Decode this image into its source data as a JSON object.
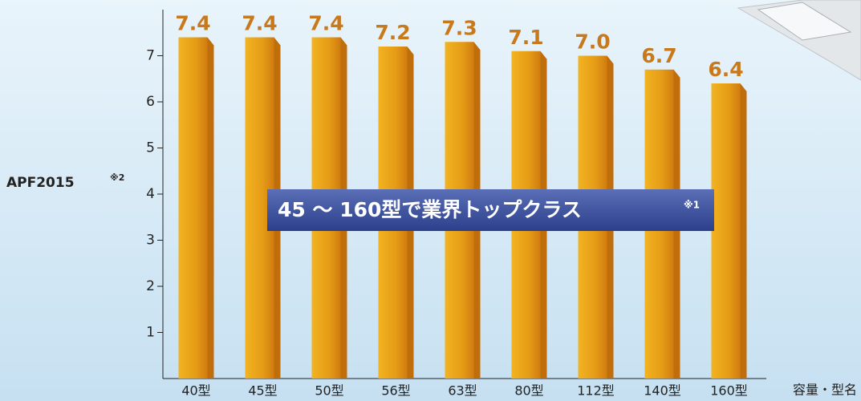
{
  "chart_data": {
    "type": "bar",
    "ylabel": "APF2015",
    "ylabel_note": "※2",
    "xlabel": "容量・型名",
    "annotation": "45 ～ 160型で業界トップクラス",
    "annotation_note": "※1",
    "categories": [
      "40型",
      "45型",
      "50型",
      "56型",
      "63型",
      "80型",
      "112型",
      "140型",
      "160型"
    ],
    "values": [
      7.4,
      7.4,
      7.4,
      7.2,
      7.3,
      7.1,
      7.0,
      6.7,
      6.4
    ],
    "value_labels": [
      "7.4",
      "7.4",
      "7.4",
      "7.2",
      "7.3",
      "7.1",
      "7.0",
      "6.7",
      "6.4"
    ],
    "color": "#e39a14",
    "ylim": [
      0,
      8
    ],
    "yticks": [
      1,
      2,
      3,
      4,
      5,
      6,
      7
    ],
    "grid": false
  }
}
